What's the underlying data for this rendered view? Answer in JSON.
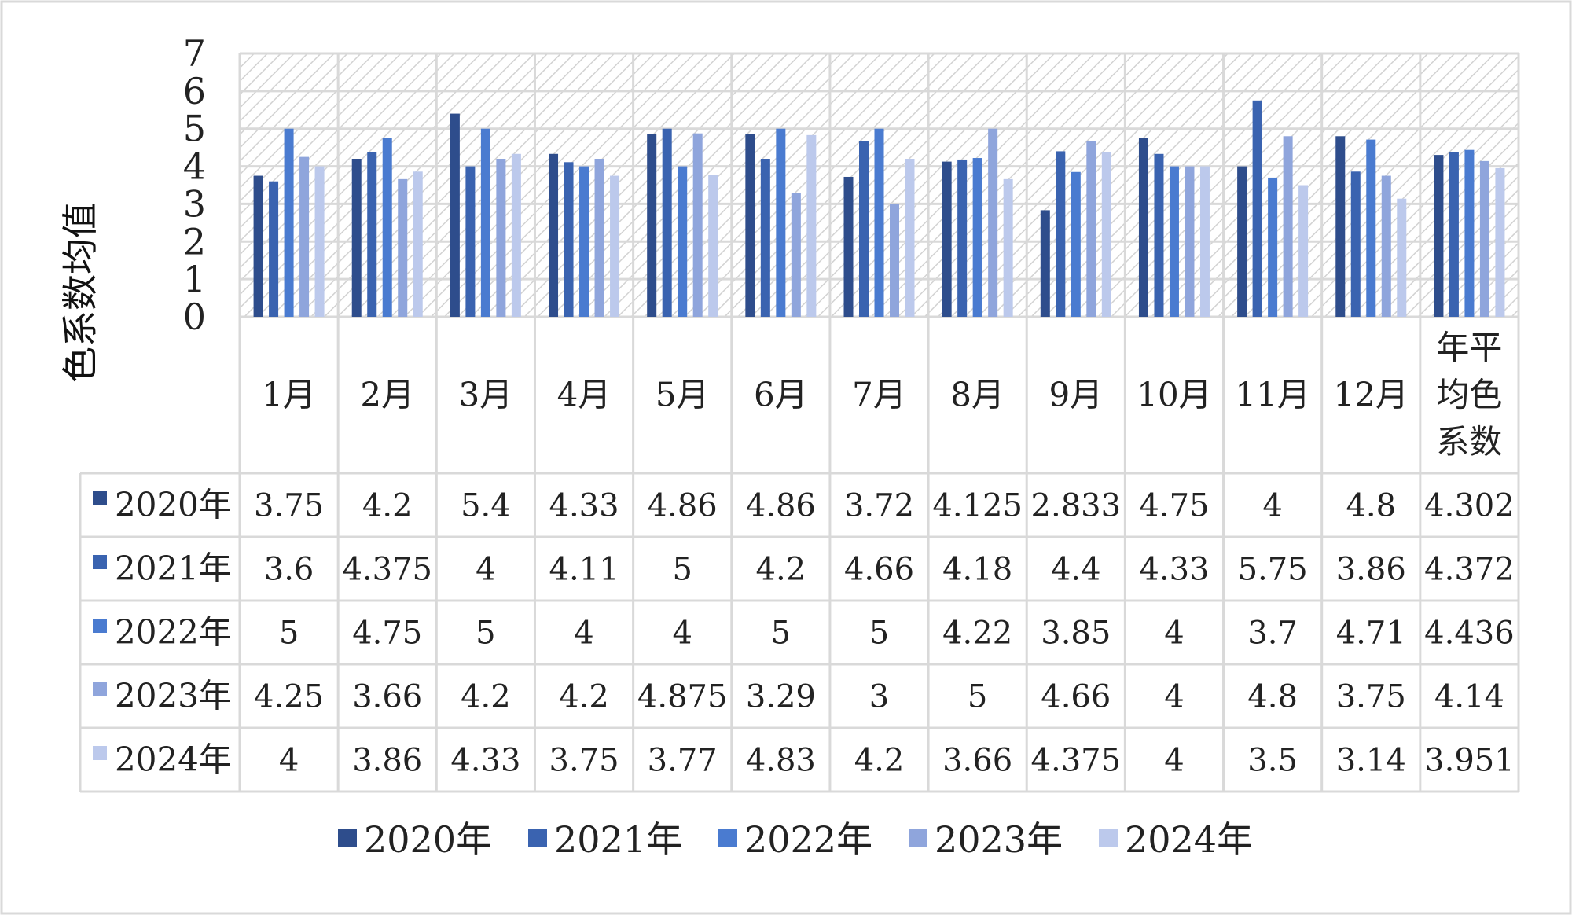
{
  "chart_data": {
    "type": "bar",
    "ylabel": "色系数均值",
    "ylim": [
      0,
      7
    ],
    "yticks": [
      0,
      1,
      2,
      3,
      4,
      5,
      6,
      7
    ],
    "grid": true,
    "categories": [
      "1月",
      "2月",
      "3月",
      "4月",
      "5月",
      "6月",
      "7月",
      "8月",
      "9月",
      "10月",
      "11月",
      "12月",
      "年平均色系数"
    ],
    "series": [
      {
        "name": "2020年",
        "color": "#2e4d8c",
        "values": [
          3.75,
          4.2,
          5.4,
          4.33,
          4.86,
          4.86,
          3.72,
          4.125,
          2.833,
          4.75,
          4,
          4.8,
          4.302
        ],
        "labels": [
          "3.75",
          "4.2",
          "5.4",
          "4.33",
          "4.86",
          "4.86",
          "3.72",
          "4.125",
          "2.833",
          "4.75",
          "4",
          "4.8",
          "4.302"
        ]
      },
      {
        "name": "2021年",
        "color": "#3a63b0",
        "values": [
          3.6,
          4.375,
          4,
          4.11,
          5,
          4.2,
          4.66,
          4.18,
          4.4,
          4.33,
          5.75,
          3.86,
          4.372
        ],
        "labels": [
          "3.6",
          "4.375",
          "4",
          "4.11",
          "5",
          "4.2",
          "4.66",
          "4.18",
          "4.4",
          "4.33",
          "5.75",
          "3.86",
          "4.372"
        ]
      },
      {
        "name": "2022年",
        "color": "#4a7bd0",
        "values": [
          5,
          4.75,
          5,
          4,
          4,
          5,
          5,
          4.22,
          3.85,
          4,
          3.7,
          4.71,
          4.436
        ],
        "labels": [
          "5",
          "4.75",
          "5",
          "4",
          "4",
          "5",
          "5",
          "4.22",
          "3.85",
          "4",
          "3.7",
          "4.71",
          "4.436"
        ]
      },
      {
        "name": "2023年",
        "color": "#8fa5dc",
        "values": [
          4.25,
          3.66,
          4.2,
          4.2,
          4.875,
          3.29,
          3,
          5,
          4.66,
          4,
          4.8,
          3.75,
          4.14
        ],
        "labels": [
          "4.25",
          "3.66",
          "4.2",
          "4.2",
          "4.875",
          "3.29",
          "3",
          "5",
          "4.66",
          "4",
          "4.8",
          "3.75",
          "4.14"
        ]
      },
      {
        "name": "2024年",
        "color": "#bcc9ec",
        "values": [
          4,
          3.86,
          4.33,
          3.75,
          3.77,
          4.83,
          4.2,
          3.66,
          4.375,
          4,
          3.5,
          3.14,
          3.951
        ],
        "labels": [
          "4",
          "3.86",
          "4.33",
          "3.75",
          "3.77",
          "4.83",
          "4.2",
          "3.66",
          "4.375",
          "4",
          "3.5",
          "3.14",
          "3.951"
        ]
      }
    ],
    "legend": {
      "position": "bottom"
    }
  }
}
